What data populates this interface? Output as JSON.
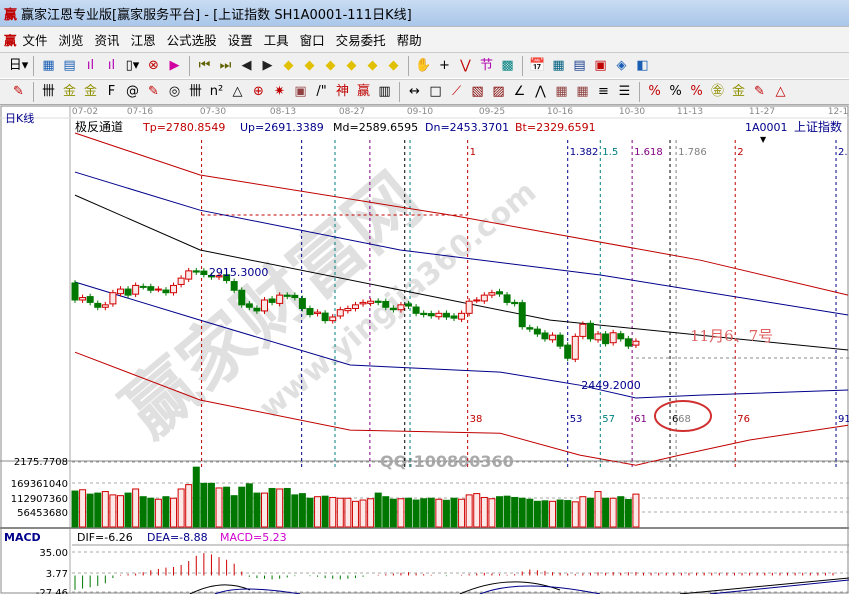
{
  "window": {
    "title": "赢家江恩专业版[赢家服务平台] - [上证指数  SH1A0001-111日K线]",
    "logo": "赢"
  },
  "menu": [
    "文件",
    "浏览",
    "资讯",
    "江恩",
    "公式选股",
    "设置",
    "工具",
    "窗口",
    "交易委托",
    "帮助"
  ],
  "toolbar1": [
    {
      "name": "period-day-select",
      "glyph": "日▾",
      "color": "#000"
    },
    {
      "name": "chart-type-icon",
      "glyph": "▦",
      "color": "#1a5fb4"
    },
    {
      "name": "document-icon",
      "glyph": "▤",
      "color": "#1a5fb4"
    },
    {
      "name": "bar-chart-3-icon",
      "glyph": "ıl",
      "color": "#b000b0"
    },
    {
      "name": "bar-chart-9-icon",
      "glyph": "ıl",
      "color": "#b000b0"
    },
    {
      "name": "candle-select-icon",
      "glyph": "▯▾",
      "color": "#000"
    },
    {
      "name": "gann-icon",
      "glyph": "⊗",
      "color": "#c00000"
    },
    {
      "name": "flag-icon",
      "glyph": "▶",
      "color": "#d000a0"
    },
    {
      "name": "first-icon",
      "glyph": "⏮",
      "color": "#606000"
    },
    {
      "name": "last-icon",
      "glyph": "⏭",
      "color": "#606000"
    },
    {
      "name": "prev-icon",
      "glyph": "◀",
      "color": "#222"
    },
    {
      "name": "next-icon",
      "glyph": "▶",
      "color": "#222"
    },
    {
      "name": "move-left-icon",
      "glyph": "◆",
      "color": "#e0c000"
    },
    {
      "name": "move-up-icon",
      "glyph": "◆",
      "color": "#e0c000"
    },
    {
      "name": "zoom-h-icon",
      "glyph": "◆",
      "color": "#e0c000"
    },
    {
      "name": "zoom-in-icon",
      "glyph": "◆",
      "color": "#e0c000"
    },
    {
      "name": "zoom-all-icon",
      "glyph": "◆",
      "color": "#e0c000"
    },
    {
      "name": "zoom-v-icon",
      "glyph": "◆",
      "color": "#e0c000"
    },
    {
      "name": "hand-icon",
      "glyph": "✋",
      "color": "#000"
    },
    {
      "name": "crosshair-icon",
      "glyph": "+",
      "color": "#000"
    },
    {
      "name": "line-draw-icon",
      "glyph": "⋁",
      "color": "#c00000"
    },
    {
      "name": "jie-icon",
      "glyph": "节",
      "color": "#b000b0"
    },
    {
      "name": "grid-icon",
      "glyph": "▩",
      "color": "#008080"
    },
    {
      "name": "calendar-icon",
      "glyph": "📅",
      "color": "#1a5fb4"
    },
    {
      "name": "calculator-icon",
      "glyph": "▦",
      "color": "#006080"
    },
    {
      "name": "notes-icon",
      "glyph": "▤",
      "color": "#1a3f8f"
    },
    {
      "name": "save-icon",
      "glyph": "▣",
      "color": "#c00000"
    },
    {
      "name": "network-icon",
      "glyph": "◈",
      "color": "#1a5fb4"
    },
    {
      "name": "connect-icon",
      "glyph": "◧",
      "color": "#1a5fb4"
    }
  ],
  "toolbar2": [
    {
      "name": "pen-icon",
      "glyph": "✎",
      "color": "#c00000"
    },
    {
      "name": "period-lines-icon",
      "glyph": "卌",
      "color": "#000"
    },
    {
      "name": "gold-1-icon",
      "glyph": "金",
      "color": "#909000"
    },
    {
      "name": "gold-2-icon",
      "glyph": "金",
      "color": "#909000"
    },
    {
      "name": "f-lines-icon",
      "glyph": "F",
      "color": "#000"
    },
    {
      "name": "spiral-icon",
      "glyph": "@",
      "color": "#000"
    },
    {
      "name": "rocket-icon",
      "glyph": "✎",
      "color": "#c00000"
    },
    {
      "name": "circle-icon",
      "glyph": "◎",
      "color": "#000"
    },
    {
      "name": "cycle-lines-icon",
      "glyph": "卌",
      "color": "#000"
    },
    {
      "name": "n2-icon",
      "glyph": "n²",
      "color": "#000"
    },
    {
      "name": "triangle-icon",
      "glyph": "△",
      "color": "#000"
    },
    {
      "name": "target-icon",
      "glyph": "⊕",
      "color": "#c00000"
    },
    {
      "name": "sun-icon",
      "glyph": "✷",
      "color": "#c00000"
    },
    {
      "name": "square-icon",
      "glyph": "▣",
      "color": "#904040"
    },
    {
      "name": "trend-icon",
      "glyph": "/\"",
      "color": "#000"
    },
    {
      "name": "shen-icon",
      "glyph": "神",
      "color": "#c00000"
    },
    {
      "name": "ying-icon",
      "glyph": "赢",
      "color": "#c00000"
    },
    {
      "name": "box-lines-icon",
      "glyph": "▥",
      "color": "#000"
    },
    {
      "name": "width-icon",
      "glyph": "↔",
      "color": "#000"
    },
    {
      "name": "rect-icon",
      "glyph": "□",
      "color": "#000"
    },
    {
      "name": "fan-icon",
      "glyph": "⟋",
      "color": "#c00000"
    },
    {
      "name": "box-fan-icon",
      "glyph": "▧",
      "color": "#800000"
    },
    {
      "name": "box-fan-2-icon",
      "glyph": "▨",
      "color": "#800000"
    },
    {
      "name": "angle-icon",
      "glyph": "∠",
      "color": "#000"
    },
    {
      "name": "zigzag-icon",
      "glyph": "⋀",
      "color": "#000"
    },
    {
      "name": "grid-box-icon",
      "glyph": "▦",
      "color": "#904040"
    },
    {
      "name": "grid-box-2-icon",
      "glyph": "▦",
      "color": "#904040"
    },
    {
      "name": "parallel-icon",
      "glyph": "≡",
      "color": "#000"
    },
    {
      "name": "ruler-icon",
      "glyph": "☰",
      "color": "#000"
    },
    {
      "name": "percent-fan-icon",
      "glyph": "%",
      "color": "#c00000"
    },
    {
      "name": "percent-icon",
      "glyph": "%",
      "color": "#000"
    },
    {
      "name": "percent-lines-icon",
      "glyph": "%",
      "color": "#c00000"
    },
    {
      "name": "gold-circle-icon",
      "glyph": "㊎",
      "color": "#909000"
    },
    {
      "name": "gold-lines-icon",
      "glyph": "金",
      "color": "#909000"
    },
    {
      "name": "pen-lines-icon",
      "glyph": "✎",
      "color": "#c00000"
    },
    {
      "name": "tri-lines-icon",
      "glyph": "△",
      "color": "#c00000"
    }
  ],
  "chart": {
    "period_label": "日K线",
    "indicator_name": "极反通道",
    "params": [
      {
        "text": "Tp=2780.8549",
        "color": "#c00000"
      },
      {
        "text": "Up=2691.3389",
        "color": "#00008b"
      },
      {
        "text": "Md=2589.6595",
        "color": "#000000"
      },
      {
        "text": "Dn=2453.3701",
        "color": "#00008b"
      },
      {
        "text": "Bt=2329.6591",
        "color": "#c00000"
      }
    ],
    "symbol_code": "1A0001",
    "symbol_name": "上证指数",
    "dates": [
      "07-02",
      "07-16",
      "07-30",
      "08-13",
      "08-27",
      "09-10",
      "09-25",
      "10-16",
      "10-30",
      "11-13",
      "11-27",
      "12-1"
    ],
    "high_label": "2915.3000",
    "low_label": "2449.2000",
    "annotation": "11月6、7号",
    "watermark": "赢家财富网",
    "watermark_url": "www.yingjia360.com",
    "watermark_qq": "QQ:100800360",
    "volume_top_label": "2175.7708",
    "volume_ticks": [
      "169361040",
      "112907360",
      "56453680"
    ],
    "macd": {
      "title": "MACD",
      "dif": "DIF=-6.26",
      "dea": "DEA=-8.88",
      "macd": "MACD=5.23",
      "ticks": [
        "35.00",
        "3.77",
        "-27.46"
      ]
    },
    "colors": {
      "up": "#d00000",
      "down": "#007800",
      "accent": "#c00000",
      "blue": "#00008b"
    }
  },
  "chart_data": {
    "type": "candlestick",
    "close": [
      2800,
      2810,
      2790,
      2770,
      2780,
      2830,
      2845,
      2820,
      2860,
      2855,
      2840,
      2845,
      2830,
      2860,
      2890,
      2920,
      2915,
      2905,
      2895,
      2900,
      2880,
      2840,
      2780,
      2770,
      2755,
      2800,
      2790,
      2820,
      2815,
      2810,
      2765,
      2740,
      2750,
      2715,
      2730,
      2760,
      2765,
      2780,
      2790,
      2795,
      2790,
      2770,
      2760,
      2780,
      2775,
      2745,
      2740,
      2735,
      2745,
      2730,
      2725,
      2745,
      2795,
      2800,
      2820,
      2830,
      2825,
      2790,
      2785,
      2690,
      2680,
      2660,
      2640,
      2655,
      2610,
      2560,
      2650,
      2700,
      2640,
      2660,
      2620,
      2665,
      2640,
      2610,
      2630
    ],
    "volume": [
      140000000.0,
      145000000.0,
      128000000.0,
      132000000.0,
      138000000.0,
      125000000.0,
      122000000.0,
      132000000.0,
      148000000.0,
      118000000.0,
      112000000.0,
      108000000.0,
      118000000.0,
      112000000.0,
      148000000.0,
      165000000.0,
      233000000.0,
      170000000.0,
      170000000.0,
      152000000.0,
      155000000.0,
      122000000.0,
      155000000.0,
      168000000.0,
      132000000.0,
      132000000.0,
      150000000.0,
      148000000.0,
      150000000.0,
      125000000.0,
      130000000.0,
      112000000.0,
      118000000.0,
      120000000.0,
      115000000.0,
      112000000.0,
      112000000.0,
      100000000.0,
      105000000.0,
      110000000.0,
      132000000.0,
      118000000.0,
      108000000.0,
      110000000.0,
      112000000.0,
      105000000.0,
      110000000.0,
      112000000.0,
      108000000.0,
      104000000.0,
      112000000.0,
      108000000.0,
      125000000.0,
      130000000.0,
      115000000.0,
      110000000.0,
      118000000.0,
      120000000.0,
      115000000.0,
      112000000.0,
      108000000.0,
      100000000.0,
      102000000.0,
      100000000.0,
      105000000.0,
      103000000.0,
      98000000.0,
      118000000.0,
      112000000.0,
      138000000.0,
      112000000.0,
      112000000.0,
      118000000.0,
      107000000.0,
      128000000.0
    ],
    "macd_hist": [
      -22,
      -20,
      -18,
      -16,
      -12,
      -4,
      1,
      2,
      3,
      5,
      8,
      10,
      12,
      13,
      16,
      22,
      30,
      34,
      32,
      28,
      24,
      18,
      6,
      -2,
      -4,
      -5,
      -6,
      -5,
      -3,
      -1,
      0,
      -1,
      -2,
      -4,
      -5,
      -6,
      -5,
      -4,
      -2,
      0,
      1,
      2,
      3,
      4,
      5,
      3,
      2,
      1,
      0,
      -1,
      0,
      1,
      2,
      3,
      4,
      3,
      2,
      1,
      2,
      6,
      9,
      8,
      7,
      5,
      4,
      3,
      2,
      3,
      4,
      5,
      4,
      5,
      4,
      5,
      5.23
    ],
    "channels": [
      {
        "name": "Tp",
        "color": "#c00000",
        "points": [
          [
            0,
            3488
          ],
          [
            16.5,
            3315
          ],
          [
            49.5,
            3150
          ],
          [
            82.5,
            2964
          ],
          [
            102,
            2820
          ]
        ]
      },
      {
        "name": "Up",
        "color": "#00008b",
        "points": [
          [
            0,
            3327
          ],
          [
            16.5,
            3170
          ],
          [
            42.9,
            3006
          ],
          [
            69.3,
            2903
          ],
          [
            102,
            2738
          ]
        ]
      },
      {
        "name": "Md",
        "color": "#000000",
        "points": [
          [
            0,
            3232
          ],
          [
            16.5,
            3006
          ],
          [
            42.9,
            2841
          ],
          [
            62.7,
            2717
          ],
          [
            102,
            2594
          ]
        ]
      },
      {
        "name": "Dn",
        "color": "#00008b",
        "points": [
          [
            0,
            2874
          ],
          [
            16.5,
            2717
          ],
          [
            36.3,
            2532
          ],
          [
            56.1,
            2503
          ],
          [
            66.6,
            2449
          ],
          [
            74,
            2396
          ],
          [
            82.5,
            2408
          ],
          [
            102,
            2429
          ]
        ]
      },
      {
        "name": "Bt",
        "color": "#c00000",
        "points": [
          [
            0,
            2585
          ],
          [
            16.5,
            2388
          ],
          [
            36.3,
            2264
          ],
          [
            56.1,
            2251
          ],
          [
            66.6,
            2161
          ],
          [
            74,
            2119
          ],
          [
            79.8,
            2161
          ],
          [
            89,
            2223
          ],
          [
            102,
            2284
          ]
        ]
      }
    ],
    "time_lines": [
      {
        "index": 16.7,
        "color": "#c00000",
        "top": "",
        "bottom": ""
      },
      {
        "index": 29.9,
        "color": "#00008b",
        "top": "",
        "bottom": ""
      },
      {
        "index": 34.3,
        "color": "#008080",
        "top": "",
        "bottom": ""
      },
      {
        "index": 38.9,
        "color": "#800080",
        "top": "",
        "bottom": ""
      },
      {
        "index": 43.5,
        "color": "#000",
        "top": "",
        "bottom": ""
      },
      {
        "index": 44.2,
        "color": "#008080",
        "top": "",
        "bottom": ""
      },
      {
        "index": 51.8,
        "color": "#c00000",
        "top": "1",
        "bottom": "38"
      },
      {
        "index": 65,
        "color": "#00008b",
        "top": "1.382",
        "bottom": "53"
      },
      {
        "index": 69.3,
        "color": "#008080",
        "top": "1.5",
        "bottom": "57"
      },
      {
        "index": 73.5,
        "color": "#800080",
        "top": "1.618",
        "bottom": "61"
      },
      {
        "index": 78.5,
        "color": "#000",
        "top": "",
        "bottom": "6"
      },
      {
        "index": 79.3,
        "color": "#808080",
        "top": "1.786",
        "bottom": "68"
      },
      {
        "index": 87.1,
        "color": "#c00000",
        "top": "2",
        "bottom": "76"
      },
      {
        "index": 100.4,
        "color": "#00008b",
        "top": "2.",
        "bottom": "91"
      }
    ]
  }
}
